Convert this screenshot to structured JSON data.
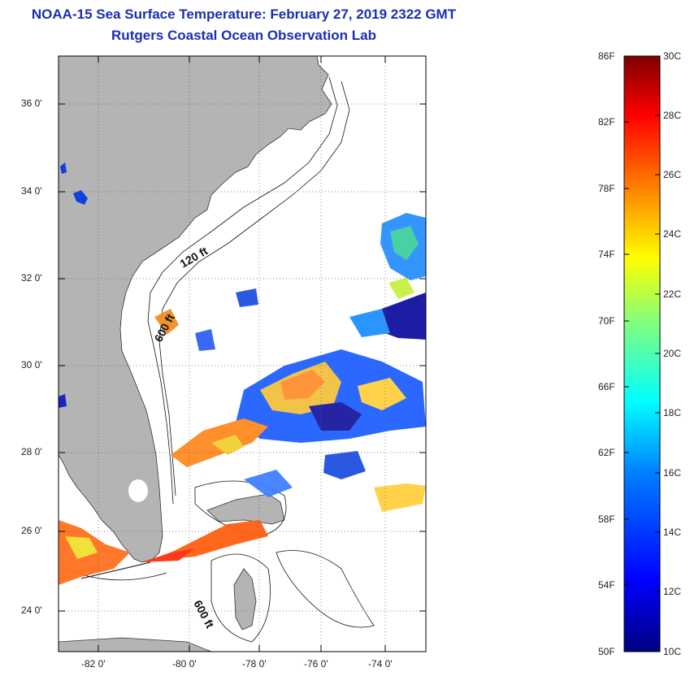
{
  "title": {
    "line1": "NOAA-15 Sea Surface Temperature:  February 27, 2019 2322 GMT",
    "line2": "Rutgers Coastal Ocean Observation Lab"
  },
  "map": {
    "lat_labels": [
      "36 0'",
      "34 0'",
      "32 0'",
      "30 0'",
      "28 0'",
      "26 0'",
      "24 0'"
    ],
    "lon_labels": [
      "-82 0'",
      "-80 0'",
      "-78 0'",
      "-76 0'",
      "-74 0'"
    ],
    "contour_labels": [
      "120 ft",
      "600 ft",
      "600 ft"
    ],
    "land_color": "#b4b4b4",
    "water_color": "#ffffff"
  },
  "colorbar": {
    "fahrenheit_labels": [
      "86F",
      "82F",
      "78F",
      "74F",
      "70F",
      "66F",
      "62F",
      "58F",
      "54F",
      "50F"
    ],
    "celsius_labels": [
      "30C",
      "28C",
      "26C",
      "24C",
      "22C",
      "20C",
      "18C",
      "16C",
      "14C",
      "12C",
      "10C"
    ],
    "colors": [
      "#00007f",
      "#0000ff",
      "#007fff",
      "#00ffff",
      "#7fff7f",
      "#ffff00",
      "#ff7f00",
      "#ff0000",
      "#7f0000"
    ]
  }
}
